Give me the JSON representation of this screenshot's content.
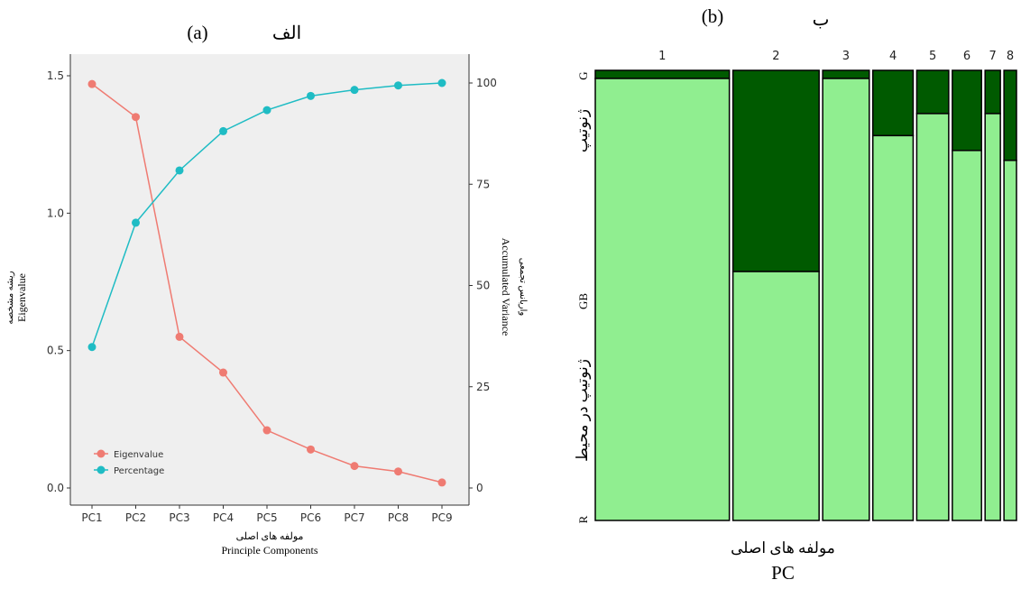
{
  "chart_data": [
    {
      "type": "line",
      "panel_label": "(a)",
      "panel_label_fa": "الف",
      "categories": [
        "PC1",
        "PC2",
        "PC3",
        "PC4",
        "PC5",
        "PC6",
        "PC7",
        "PC8",
        "PC9"
      ],
      "xlabel_fa": "مولفه های اصلی",
      "xlabel": "Principle Components",
      "ylabel_fa": "ریشه مشخصه",
      "ylabel": "Eigenvalue",
      "y2label_fa": "واریانس تجمعی",
      "y2label": "Accumulated Variance",
      "ylim": [
        0,
        1.5
      ],
      "yticks": [
        "0.0",
        "0.5",
        "1.0",
        "1.5"
      ],
      "y2lim": [
        0,
        100
      ],
      "y2ticks": [
        "0",
        "25",
        "50",
        "75",
        "100"
      ],
      "legend_position": "bottom-left",
      "grid": false,
      "series": [
        {
          "name": "Eigenvalue",
          "axis": "left",
          "color": "#ef7b72",
          "values": [
            1.47,
            1.35,
            0.55,
            0.42,
            0.21,
            0.14,
            0.08,
            0.06,
            0.02
          ]
        },
        {
          "name": "Percentage",
          "axis": "right",
          "color": "#1fbcc4",
          "values": [
            34.8,
            65.5,
            78.4,
            88.1,
            93.3,
            96.8,
            98.3,
            99.4,
            100
          ]
        }
      ]
    },
    {
      "type": "mosaic",
      "panel_label": "(b)",
      "panel_label_fa": "ب",
      "column_labels": [
        "1",
        "2",
        "3",
        "4",
        "5",
        "6",
        "7",
        "8"
      ],
      "column_widths": [
        0.193,
        0.124,
        0.067,
        0.058,
        0.046,
        0.042,
        0.022,
        0.018
      ],
      "g_fraction": [
        0.018,
        0.447,
        0.018,
        0.145,
        0.096,
        0.178,
        0.096,
        0.2
      ],
      "row_labels": [
        "G",
        "GB",
        "R"
      ],
      "row_labels_fa": [
        "ژنوتیپ",
        "ژنوتیپ در محیط"
      ],
      "xlabel_fa": "مولفه های اصلی",
      "xlabel": "PC",
      "colors": {
        "g": "#005a00",
        "rest": "#90ee90",
        "border": "#000000"
      }
    }
  ]
}
